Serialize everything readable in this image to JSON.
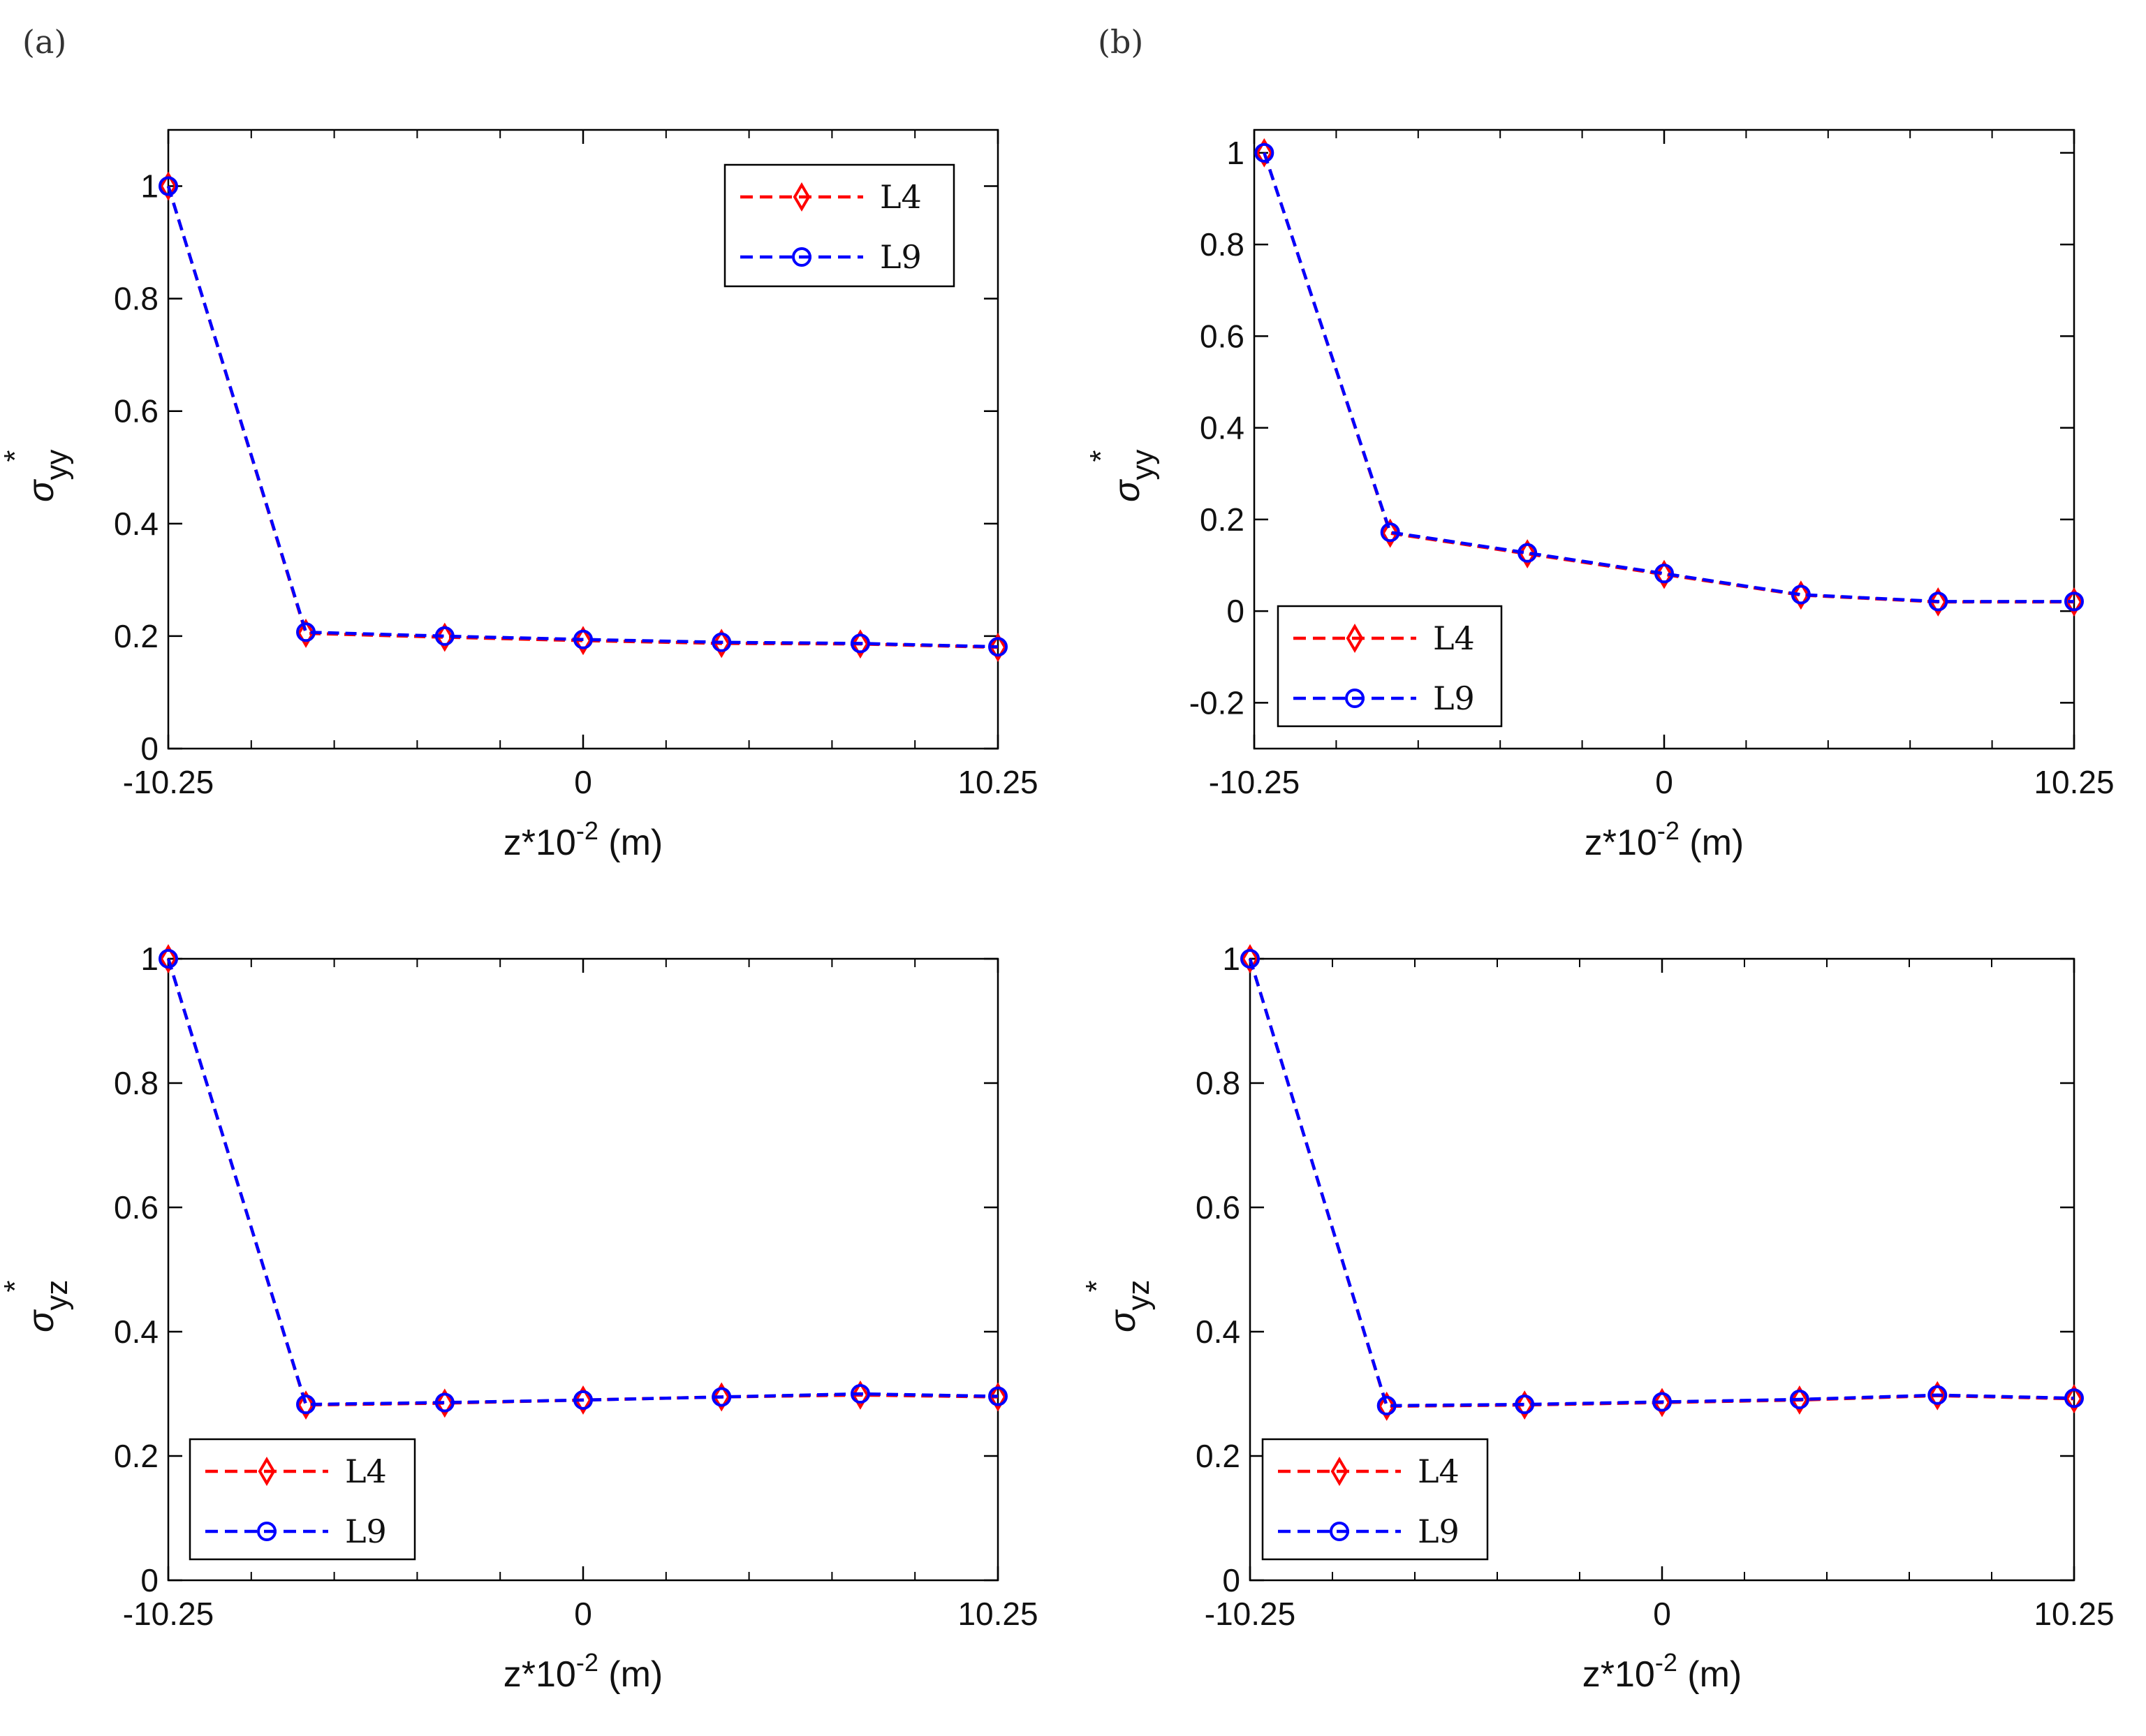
{
  "panel_labels": [
    "(a)",
    "(b)"
  ],
  "legend_entries": [
    "L4",
    "L9"
  ],
  "colors": {
    "L4": "#ff0000",
    "L9": "#0000ff",
    "axes": "#000000"
  },
  "chart_data": [
    {
      "type": "line",
      "panel": "(a)",
      "ylabel": {
        "symbol": "σ",
        "sub": "yy",
        "sup": "*"
      },
      "xlabel": {
        "base": "z*10",
        "sup": "-2",
        "unit": " (m)"
      },
      "xlim": [
        -10.25,
        10.25
      ],
      "ylim": [
        0,
        1.1
      ],
      "xticks": [
        -10.25,
        0,
        10.25
      ],
      "xtick_labels": [
        "-10.25",
        "0",
        "10.25"
      ],
      "yticks": [
        0,
        0.2,
        0.4,
        0.6,
        0.8,
        1
      ],
      "ytick_labels": [
        "0",
        "0.2",
        "0.4",
        "0.6",
        "0.8",
        "1"
      ],
      "x": [
        -10.25,
        -6.85,
        -3.42,
        0,
        3.42,
        6.85,
        10.25
      ],
      "legend_position": "top-right",
      "series": [
        {
          "name": "L4",
          "marker": "diamond",
          "values": [
            1.0,
            0.205,
            0.198,
            0.192,
            0.187,
            0.186,
            0.18
          ]
        },
        {
          "name": "L9",
          "marker": "circle",
          "values": [
            1.0,
            0.207,
            0.2,
            0.194,
            0.189,
            0.187,
            0.181
          ]
        }
      ]
    },
    {
      "type": "line",
      "panel": "(b)",
      "ylabel": {
        "symbol": "σ",
        "sub": "yy",
        "sup": "*"
      },
      "xlabel": {
        "base": "z*10",
        "sup": "-2",
        "unit": " (m)"
      },
      "xlim": [
        -10.25,
        10.25
      ],
      "ylim": [
        -0.3,
        1.05
      ],
      "xticks": [
        -10.25,
        0,
        10.25
      ],
      "xtick_labels": [
        "-10.25",
        "0",
        "10.25"
      ],
      "yticks": [
        -0.2,
        0,
        0.2,
        0.4,
        0.6,
        0.8,
        1
      ],
      "ytick_labels": [
        "-0.2",
        "0",
        "0.2",
        "0.4",
        "0.6",
        "0.8",
        "1"
      ],
      "x": [
        -10.0,
        -6.85,
        -3.42,
        0,
        3.42,
        6.85,
        10.25
      ],
      "legend_position": "bottom-left",
      "series": [
        {
          "name": "L4",
          "marker": "diamond",
          "values": [
            1.0,
            0.17,
            0.125,
            0.08,
            0.035,
            0.02,
            0.02
          ]
        },
        {
          "name": "L9",
          "marker": "circle",
          "values": [
            1.0,
            0.172,
            0.127,
            0.082,
            0.036,
            0.021,
            0.021
          ]
        }
      ]
    },
    {
      "type": "line",
      "panel": "(a) bottom",
      "ylabel": {
        "symbol": "σ",
        "sub": "yz",
        "sup": "*"
      },
      "xlabel": {
        "base": "z*10",
        "sup": "-2",
        "unit": " (m)"
      },
      "xlim": [
        -10.25,
        10.25
      ],
      "ylim": [
        0,
        1.0
      ],
      "xticks": [
        -10.25,
        0,
        10.25
      ],
      "xtick_labels": [
        "-10.25",
        "0",
        "10.25"
      ],
      "yticks": [
        0,
        0.2,
        0.4,
        0.6,
        0.8,
        1
      ],
      "ytick_labels": [
        "0",
        "0.2",
        "0.4",
        "0.6",
        "0.8",
        "1"
      ],
      "x": [
        -10.25,
        -6.85,
        -3.42,
        0,
        3.42,
        6.85,
        10.25
      ],
      "legend_position": "bottom-left",
      "series": [
        {
          "name": "L4",
          "marker": "diamond",
          "values": [
            1.0,
            0.282,
            0.285,
            0.29,
            0.295,
            0.298,
            0.295
          ]
        },
        {
          "name": "L9",
          "marker": "circle",
          "values": [
            1.0,
            0.283,
            0.286,
            0.29,
            0.295,
            0.3,
            0.296
          ]
        }
      ]
    },
    {
      "type": "line",
      "panel": "(b) bottom",
      "ylabel": {
        "symbol": "σ",
        "sub": "yz",
        "sup": "*"
      },
      "xlabel": {
        "base": "z*10",
        "sup": "-2",
        "unit": " (m)"
      },
      "xlim": [
        -10.25,
        10.25
      ],
      "ylim": [
        0,
        1.0
      ],
      "xticks": [
        -10.25,
        0,
        10.25
      ],
      "xtick_labels": [
        "-10.25",
        "0",
        "10.25"
      ],
      "yticks": [
        0,
        0.2,
        0.4,
        0.6,
        0.8,
        1
      ],
      "ytick_labels": [
        "0",
        "0.2",
        "0.4",
        "0.6",
        "0.8",
        "1"
      ],
      "x": [
        -10.25,
        -6.85,
        -3.42,
        0,
        3.42,
        6.85,
        10.25
      ],
      "legend_position": "bottom-left",
      "series": [
        {
          "name": "L4",
          "marker": "diamond",
          "values": [
            1.0,
            0.28,
            0.282,
            0.286,
            0.29,
            0.297,
            0.292
          ]
        },
        {
          "name": "L9",
          "marker": "circle",
          "values": [
            1.0,
            0.281,
            0.283,
            0.287,
            0.291,
            0.298,
            0.293
          ]
        }
      ]
    }
  ]
}
